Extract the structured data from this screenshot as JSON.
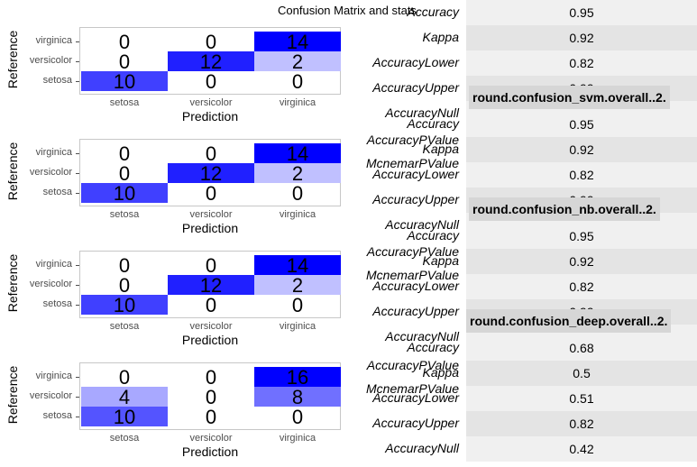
{
  "title": "Confusion Matrix and stats",
  "chart_data": [
    {
      "type": "heatmap",
      "xlabel": "Prediction",
      "ylabel": "Reference",
      "x_categories": [
        "setosa",
        "versicolor",
        "virginica"
      ],
      "y_categories": [
        "virginica",
        "versicolor",
        "setosa"
      ],
      "values": [
        [
          0,
          0,
          14
        ],
        [
          0,
          12,
          2
        ],
        [
          10,
          0,
          0
        ]
      ]
    },
    {
      "type": "heatmap",
      "xlabel": "Prediction",
      "ylabel": "Reference",
      "x_categories": [
        "setosa",
        "versicolor",
        "virginica"
      ],
      "y_categories": [
        "virginica",
        "versicolor",
        "setosa"
      ],
      "values": [
        [
          0,
          0,
          14
        ],
        [
          0,
          12,
          2
        ],
        [
          10,
          0,
          0
        ]
      ]
    },
    {
      "type": "heatmap",
      "xlabel": "Prediction",
      "ylabel": "Reference",
      "x_categories": [
        "setosa",
        "versicolor",
        "virginica"
      ],
      "y_categories": [
        "virginica",
        "versicolor",
        "setosa"
      ],
      "values": [
        [
          0,
          0,
          14
        ],
        [
          0,
          12,
          2
        ],
        [
          10,
          0,
          0
        ]
      ]
    },
    {
      "type": "heatmap",
      "xlabel": "Prediction",
      "ylabel": "Reference",
      "x_categories": [
        "setosa",
        "versicolor",
        "virginica"
      ],
      "y_categories": [
        "virginica",
        "versicolor",
        "setosa"
      ],
      "values": [
        [
          0,
          0,
          16
        ],
        [
          4,
          0,
          8
        ],
        [
          10,
          0,
          0
        ]
      ]
    }
  ],
  "stats_tables": [
    {
      "header": "",
      "rows": [
        {
          "label": "Accuracy",
          "value": "0.95"
        },
        {
          "label": "Kappa",
          "value": "0.92"
        },
        {
          "label": "AccuracyLower",
          "value": "0.82"
        },
        {
          "label": "AccuracyUpper",
          "value": "0.99"
        },
        {
          "label": "AccuracyNull",
          "value": ""
        }
      ]
    },
    {
      "header": "round.confusion_svm.overall..2.",
      "rows": [
        {
          "label": "Accuracy",
          "value": "0.95"
        },
        {
          "label": "Kappa",
          "value": "0.92"
        },
        {
          "label": "AccuracyLower",
          "value": "0.82"
        },
        {
          "label": "AccuracyUpper",
          "value": "0.99"
        },
        {
          "label": "AccuracyNull",
          "value": ""
        }
      ]
    },
    {
      "header": "round.confusion_nb.overall..2.",
      "rows": [
        {
          "label": "Accuracy",
          "value": "0.95"
        },
        {
          "label": "Kappa",
          "value": "0.92"
        },
        {
          "label": "AccuracyLower",
          "value": "0.82"
        },
        {
          "label": "AccuracyUpper",
          "value": "0.99"
        },
        {
          "label": "AccuracyNull",
          "value": ""
        }
      ]
    },
    {
      "header": "round.confusion_deep.overall..2.",
      "rows": [
        {
          "label": "Accuracy",
          "value": "0.68"
        },
        {
          "label": "Kappa",
          "value": "0.5"
        },
        {
          "label": "AccuracyLower",
          "value": "0.51"
        },
        {
          "label": "AccuracyUpper",
          "value": "0.82"
        },
        {
          "label": "AccuracyNull",
          "value": "0.42"
        }
      ]
    }
  ],
  "overlap_labels": [
    "AccuracyPValue",
    "McnemarPValue"
  ],
  "colors": {
    "high": "#0000ff",
    "low": "#ffffff",
    "row_even": "#f0f0f0",
    "row_odd": "#e4e4e4",
    "header": "#d6d6d6"
  }
}
